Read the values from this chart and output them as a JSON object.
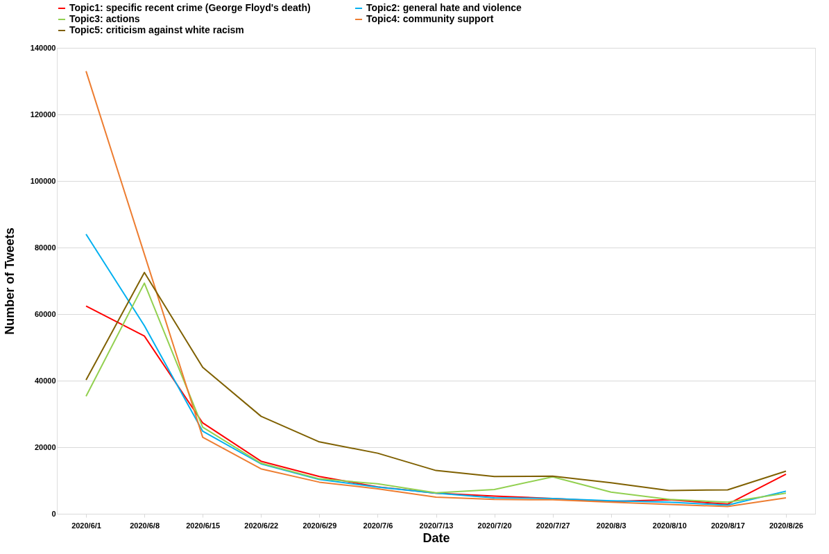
{
  "chart_data": {
    "type": "line",
    "xlabel": "Date",
    "ylabel": "Number of Tweets",
    "categories": [
      "2020/6/1",
      "2020/6/8",
      "2020/6/15",
      "2020/6/22",
      "2020/6/29",
      "2020/7/6",
      "2020/7/13",
      "2020/7/20",
      "2020/7/27",
      "2020/8/3",
      "2020/8/10",
      "2020/8/17",
      "2020/8/26"
    ],
    "series": [
      {
        "name": "Topic1: specific recent crime (George Floyd's death)",
        "color": "#ff0000",
        "values": [
          62400,
          53400,
          27300,
          15800,
          11200,
          8100,
          6200,
          5300,
          4600,
          3700,
          4200,
          2900,
          11900
        ]
      },
      {
        "name": "Topic2: general hate and violence",
        "color": "#00b0f0",
        "values": [
          84000,
          56500,
          24800,
          15000,
          10300,
          8000,
          6200,
          4800,
          4600,
          3900,
          3500,
          2600,
          6800
        ]
      },
      {
        "name": "Topic3: actions",
        "color": "#92d050",
        "values": [
          35300,
          69300,
          26000,
          15200,
          10500,
          9000,
          6300,
          7300,
          11100,
          6500,
          4300,
          3500,
          6200
        ]
      },
      {
        "name": "Topic4: community support",
        "color": "#ed7d31",
        "values": [
          133000,
          78000,
          23000,
          13500,
          9500,
          7500,
          5000,
          4300,
          4200,
          3500,
          2800,
          2200,
          4800
        ]
      },
      {
        "name": "Topic5: criticism against white racism",
        "color": "#7f6000",
        "values": [
          40200,
          72500,
          44000,
          29300,
          21600,
          18200,
          13000,
          11200,
          11300,
          9300,
          7000,
          7200,
          12800
        ]
      }
    ],
    "ylim": [
      0,
      140000
    ],
    "yticks": [
      0,
      20000,
      40000,
      60000,
      80000,
      100000,
      120000,
      140000
    ],
    "grid": "y",
    "legend": "top",
    "marker": "none",
    "line_style": "solid"
  }
}
